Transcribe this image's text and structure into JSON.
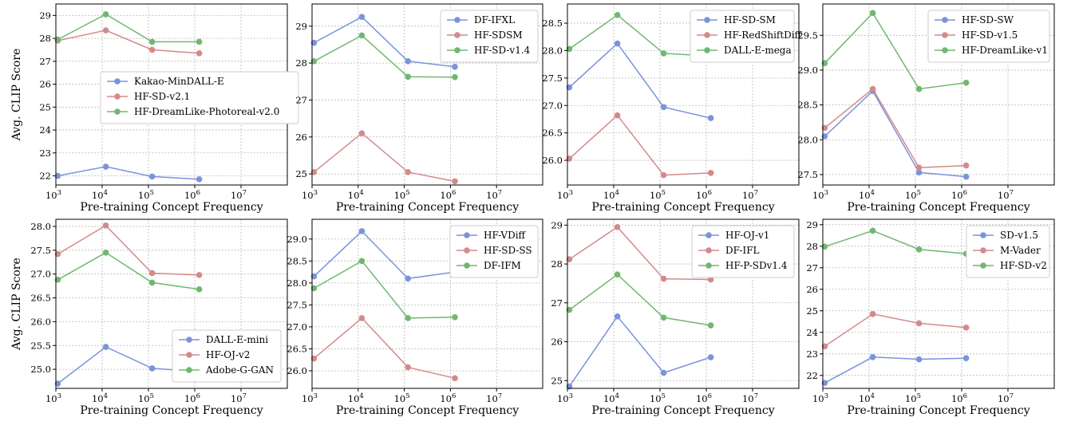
{
  "colors": {
    "blue": "#7a93dc",
    "red": "#d48a8a",
    "green": "#6fb86f"
  },
  "chart_data": [
    {
      "type": "line",
      "xscale": "log",
      "xlim": [
        1000,
        100000000
      ],
      "ylim": [
        21.6,
        29.5
      ],
      "xlabel": "Pre-training Concept Frequency",
      "ylabel": "Avg. CLIP Score",
      "xticks": [
        {
          "v": 1000,
          "l": "10",
          "e": "3"
        },
        {
          "v": 10000,
          "l": "10",
          "e": "4"
        },
        {
          "v": 100000,
          "l": "10",
          "e": "5"
        },
        {
          "v": 1000000,
          "l": "10",
          "e": "6"
        },
        {
          "v": 10000000,
          "l": "10",
          "e": "7"
        }
      ],
      "yticks": [
        22,
        23,
        24,
        25,
        26,
        27,
        28,
        29
      ],
      "legend": "center-right",
      "series": [
        {
          "name": "Kakao-MinDALL-E",
          "color": "blue",
          "x": [
            1100,
            12000,
            120000,
            1250000
          ],
          "y": [
            22.0,
            22.4,
            21.97,
            21.85
          ]
        },
        {
          "name": "HF-SD-v2.1",
          "color": "red",
          "x": [
            1100,
            12000,
            120000,
            1250000
          ],
          "y": [
            27.9,
            28.35,
            27.5,
            27.35
          ]
        },
        {
          "name": "HF-DreamLike-Photoreal-v2.0",
          "color": "green",
          "x": [
            1100,
            12000,
            120000,
            1250000
          ],
          "y": [
            27.95,
            29.05,
            27.85,
            27.85
          ]
        }
      ]
    },
    {
      "type": "line",
      "xscale": "log",
      "xlim": [
        1000,
        100000000
      ],
      "ylim": [
        24.7,
        29.6
      ],
      "xlabel": "Pre-training Concept Frequency",
      "ylabel": "",
      "xticks": [
        {
          "v": 1000,
          "l": "10",
          "e": "3"
        },
        {
          "v": 10000,
          "l": "10",
          "e": "4"
        },
        {
          "v": 100000,
          "l": "10",
          "e": "5"
        },
        {
          "v": 1000000,
          "l": "10",
          "e": "6"
        },
        {
          "v": 10000000,
          "l": "10",
          "e": "7"
        }
      ],
      "yticks": [
        25,
        26,
        27,
        28,
        29
      ],
      "legend": "top-right",
      "series": [
        {
          "name": "DF-IFXL",
          "color": "blue",
          "x": [
            1100,
            12000,
            120000,
            1250000
          ],
          "y": [
            28.55,
            29.25,
            28.05,
            27.9
          ]
        },
        {
          "name": "HF-SDSM",
          "color": "red",
          "x": [
            1100,
            12000,
            120000,
            1250000
          ],
          "y": [
            25.05,
            26.1,
            25.05,
            24.8
          ]
        },
        {
          "name": "HF-SD-v1.4",
          "color": "green",
          "x": [
            1100,
            12000,
            120000,
            1250000
          ],
          "y": [
            28.05,
            28.75,
            27.63,
            27.62
          ]
        }
      ]
    },
    {
      "type": "line",
      "xscale": "log",
      "xlim": [
        1000,
        100000000
      ],
      "ylim": [
        25.55,
        28.85
      ],
      "xlabel": "Pre-training Concept Frequency",
      "ylabel": "",
      "xticks": [
        {
          "v": 1000,
          "l": "10",
          "e": "3"
        },
        {
          "v": 10000,
          "l": "10",
          "e": "4"
        },
        {
          "v": 100000,
          "l": "10",
          "e": "5"
        },
        {
          "v": 1000000,
          "l": "10",
          "e": "6"
        },
        {
          "v": 10000000,
          "l": "10",
          "e": "7"
        }
      ],
      "yticks": [
        26.0,
        26.5,
        27.0,
        27.5,
        28.0,
        28.5
      ],
      "ytickfmt": 1,
      "legend": "top-right",
      "series": [
        {
          "name": "HF-SD-SM",
          "color": "blue",
          "x": [
            1100,
            12000,
            120000,
            1250000
          ],
          "y": [
            27.33,
            28.13,
            26.97,
            26.77
          ]
        },
        {
          "name": "HF-RedShiftDiff",
          "color": "red",
          "x": [
            1100,
            12000,
            120000,
            1250000
          ],
          "y": [
            26.03,
            26.82,
            25.73,
            25.77
          ]
        },
        {
          "name": "DALL-E-mega",
          "color": "green",
          "x": [
            1100,
            12000,
            120000,
            1250000
          ],
          "y": [
            28.03,
            28.65,
            27.95,
            27.9
          ]
        }
      ]
    },
    {
      "type": "line",
      "xscale": "log",
      "xlim": [
        1000,
        100000000
      ],
      "ylim": [
        27.35,
        29.95
      ],
      "xlabel": "Pre-training Concept Frequency",
      "ylabel": "",
      "xticks": [
        {
          "v": 1000,
          "l": "10",
          "e": "3"
        },
        {
          "v": 10000,
          "l": "10",
          "e": "4"
        },
        {
          "v": 100000,
          "l": "10",
          "e": "5"
        },
        {
          "v": 1000000,
          "l": "10",
          "e": "6"
        },
        {
          "v": 10000000,
          "l": "10",
          "e": "7"
        }
      ],
      "yticks": [
        27.5,
        28.0,
        28.5,
        29.0,
        29.5
      ],
      "ytickfmt": 1,
      "legend": "top-right",
      "series": [
        {
          "name": "HF-SD-SW",
          "color": "blue",
          "x": [
            1100,
            12000,
            120000,
            1250000
          ],
          "y": [
            28.05,
            28.7,
            27.53,
            27.47
          ]
        },
        {
          "name": "HF-SD-v1.5",
          "color": "red",
          "x": [
            1100,
            12000,
            120000,
            1250000
          ],
          "y": [
            28.17,
            28.73,
            27.6,
            27.63
          ]
        },
        {
          "name": "HF-DreamLike-v1",
          "color": "green",
          "x": [
            1100,
            12000,
            120000,
            1250000
          ],
          "y": [
            29.1,
            29.82,
            28.73,
            28.82
          ]
        }
      ]
    },
    {
      "type": "line",
      "xscale": "log",
      "xlim": [
        1000,
        100000000
      ],
      "ylim": [
        24.6,
        28.15
      ],
      "xlabel": "Pre-training Concept Frequency",
      "ylabel": "Avg. CLIP Score",
      "xticks": [
        {
          "v": 1000,
          "l": "10",
          "e": "3"
        },
        {
          "v": 10000,
          "l": "10",
          "e": "4"
        },
        {
          "v": 100000,
          "l": "10",
          "e": "5"
        },
        {
          "v": 1000000,
          "l": "10",
          "e": "6"
        },
        {
          "v": 10000000,
          "l": "10",
          "e": "7"
        }
      ],
      "yticks": [
        25.0,
        25.5,
        26.0,
        26.5,
        27.0,
        27.5,
        28.0
      ],
      "ytickfmt": 1,
      "legend": "bottom-right",
      "series": [
        {
          "name": "DALL-E-mini",
          "color": "blue",
          "x": [
            1100,
            12000,
            120000,
            1250000
          ],
          "y": [
            24.7,
            25.47,
            25.02,
            24.95
          ]
        },
        {
          "name": "HF-OJ-v2",
          "color": "red",
          "x": [
            1100,
            12000,
            120000,
            1250000
          ],
          "y": [
            27.42,
            28.02,
            27.02,
            26.98
          ]
        },
        {
          "name": "Adobe-G-GAN",
          "color": "green",
          "x": [
            1100,
            12000,
            120000,
            1250000
          ],
          "y": [
            26.88,
            27.45,
            26.82,
            26.68
          ]
        }
      ]
    },
    {
      "type": "line",
      "xscale": "log",
      "xlim": [
        1000,
        100000000
      ],
      "ylim": [
        25.6,
        29.45
      ],
      "xlabel": "Pre-training Concept Frequency",
      "ylabel": "",
      "xticks": [
        {
          "v": 1000,
          "l": "10",
          "e": "3"
        },
        {
          "v": 10000,
          "l": "10",
          "e": "4"
        },
        {
          "v": 100000,
          "l": "10",
          "e": "5"
        },
        {
          "v": 1000000,
          "l": "10",
          "e": "6"
        },
        {
          "v": 10000000,
          "l": "10",
          "e": "7"
        }
      ],
      "yticks": [
        26.0,
        26.5,
        27.0,
        27.5,
        28.0,
        28.5,
        29.0
      ],
      "ytickfmt": 1,
      "legend": "top-right",
      "series": [
        {
          "name": "HF-VDiff",
          "color": "blue",
          "x": [
            1100,
            12000,
            120000,
            1250000
          ],
          "y": [
            28.15,
            29.18,
            28.1,
            28.25
          ]
        },
        {
          "name": "HF-SD-SS",
          "color": "red",
          "x": [
            1100,
            12000,
            120000,
            1250000
          ],
          "y": [
            26.28,
            27.2,
            26.08,
            25.83
          ]
        },
        {
          "name": "DF-IFM",
          "color": "green",
          "x": [
            1100,
            12000,
            120000,
            1250000
          ],
          "y": [
            27.88,
            28.5,
            27.2,
            27.22
          ]
        }
      ]
    },
    {
      "type": "line",
      "xscale": "log",
      "xlim": [
        1000,
        100000000
      ],
      "ylim": [
        24.8,
        29.15
      ],
      "xlabel": "Pre-training Concept Frequency",
      "ylabel": "",
      "xticks": [
        {
          "v": 1000,
          "l": "10",
          "e": "3"
        },
        {
          "v": 10000,
          "l": "10",
          "e": "4"
        },
        {
          "v": 100000,
          "l": "10",
          "e": "5"
        },
        {
          "v": 1000000,
          "l": "10",
          "e": "6"
        },
        {
          "v": 10000000,
          "l": "10",
          "e": "7"
        }
      ],
      "yticks": [
        25,
        26,
        27,
        28,
        29
      ],
      "legend": "top-right",
      "series": [
        {
          "name": "HF-OJ-v1",
          "color": "blue",
          "x": [
            1100,
            12000,
            120000,
            1250000
          ],
          "y": [
            24.85,
            26.65,
            25.2,
            25.6
          ]
        },
        {
          "name": "DF-IFL",
          "color": "red",
          "x": [
            1100,
            12000,
            120000,
            1250000
          ],
          "y": [
            28.12,
            28.95,
            27.62,
            27.6
          ]
        },
        {
          "name": "HF-P-SDv1.4",
          "color": "green",
          "x": [
            1100,
            12000,
            120000,
            1250000
          ],
          "y": [
            26.82,
            27.73,
            26.62,
            26.42
          ]
        }
      ]
    },
    {
      "type": "line",
      "xscale": "log",
      "xlim": [
        1000,
        100000000
      ],
      "ylim": [
        21.4,
        29.25
      ],
      "xlabel": "Pre-training Concept Frequency",
      "ylabel": "",
      "xticks": [
        {
          "v": 1000,
          "l": "10",
          "e": "3"
        },
        {
          "v": 10000,
          "l": "10",
          "e": "4"
        },
        {
          "v": 100000,
          "l": "10",
          "e": "5"
        },
        {
          "v": 1000000,
          "l": "10",
          "e": "6"
        },
        {
          "v": 10000000,
          "l": "10",
          "e": "7"
        }
      ],
      "yticks": [
        22,
        23,
        24,
        25,
        26,
        27,
        28,
        29
      ],
      "legend": "top-right",
      "series": [
        {
          "name": "SD-v1.5",
          "color": "blue",
          "x": [
            1100,
            12000,
            120000,
            1250000
          ],
          "y": [
            21.65,
            22.85,
            22.75,
            22.8
          ]
        },
        {
          "name": "M-Vader",
          "color": "red",
          "x": [
            1100,
            12000,
            120000,
            1250000
          ],
          "y": [
            23.35,
            24.85,
            24.42,
            24.22
          ]
        },
        {
          "name": "HF-SD-v2",
          "color": "green",
          "x": [
            1100,
            12000,
            120000,
            1250000
          ],
          "y": [
            27.98,
            28.72,
            27.85,
            27.65
          ]
        }
      ]
    }
  ]
}
